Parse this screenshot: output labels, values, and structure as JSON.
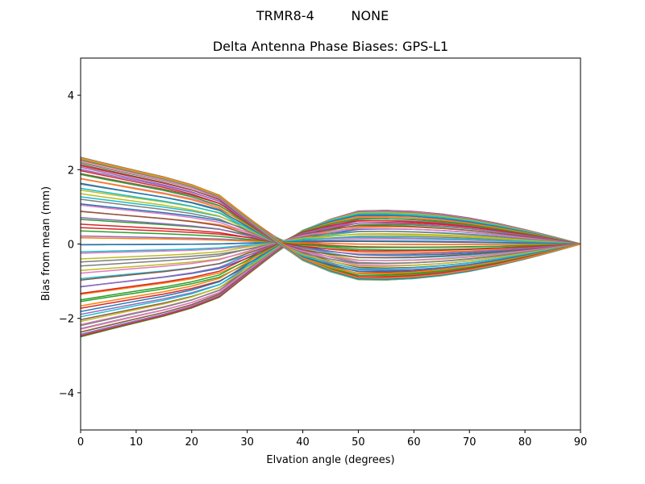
{
  "figure": {
    "suptitle": "TRMR8-4         NONE",
    "title": "Delta Antenna Phase Biases: GPS-L1"
  },
  "chart_data": {
    "type": "line",
    "title": "Delta Antenna Phase Biases: GPS-L1",
    "suptitle": "TRMR8-4         NONE",
    "xlabel": "Elvation angle (degrees)",
    "ylabel": "Bias from mean (mm)",
    "xlim": [
      0,
      90
    ],
    "ylim": [
      -5,
      5
    ],
    "xticks": [
      0,
      10,
      20,
      30,
      40,
      50,
      60,
      70,
      80,
      90
    ],
    "yticks": [
      -4,
      -2,
      0,
      2,
      4
    ],
    "ytick_labels": [
      "−4",
      "−2",
      "0",
      "2",
      "4"
    ],
    "grid": false,
    "legend": null,
    "x": [
      0,
      5,
      10,
      15,
      20,
      25,
      30,
      35,
      40,
      45,
      50,
      55,
      60,
      65,
      70,
      75,
      80,
      85,
      90
    ],
    "series_note": "Approximately 72 curves (one per azimuth), matplotlib tab10 color cycle; all converge to 0 at 90 degrees. Envelope roughly +2.5/-2.3 mm at low elevation, +1.1/-0.9 mm near 50-60 degrees.",
    "colors": [
      "#1f77b4",
      "#ff7f0e",
      "#2ca02c",
      "#d62728",
      "#9467bd",
      "#8c564b",
      "#e377c2",
      "#7f7f7f",
      "#bcbd22",
      "#17becf"
    ],
    "series_count": 72
  }
}
